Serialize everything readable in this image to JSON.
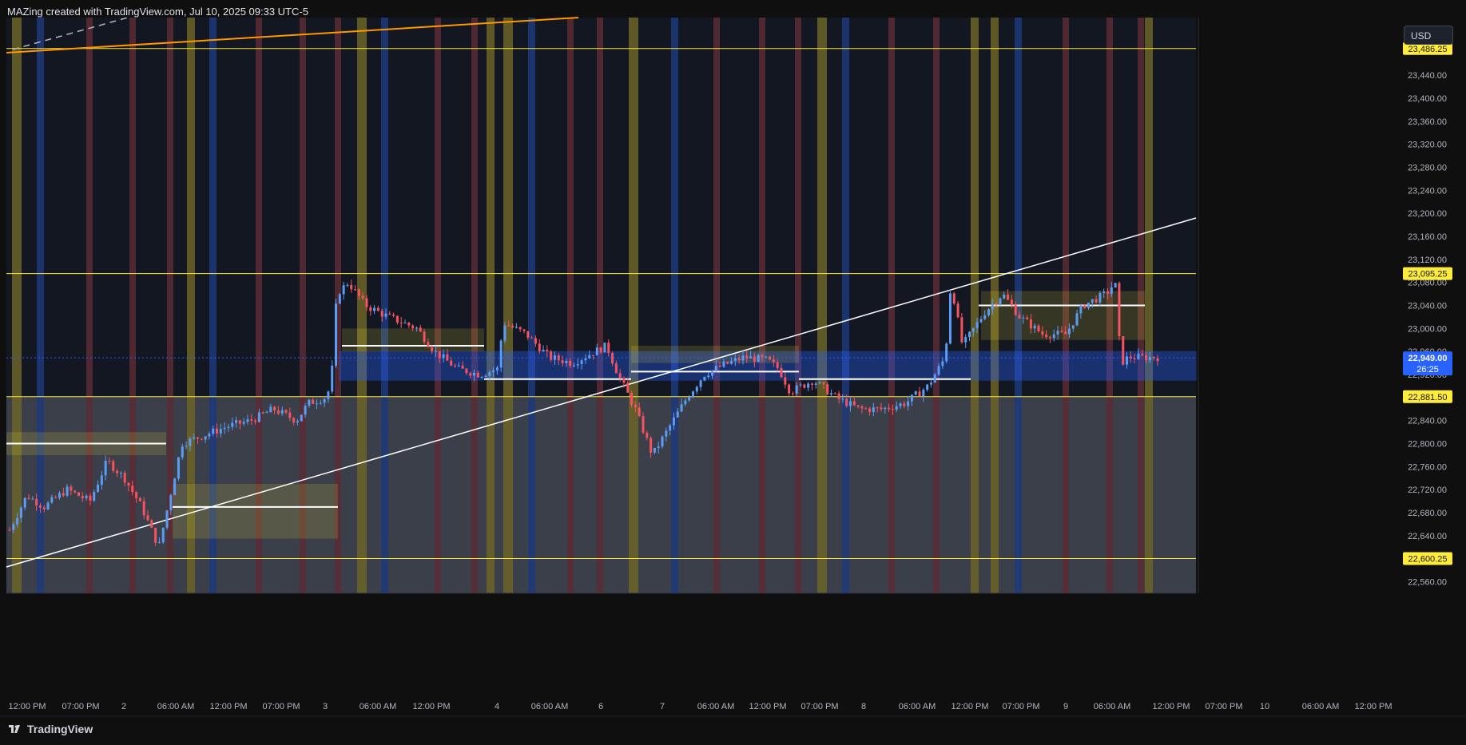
{
  "header": {
    "title": "MAZing created with TradingView.com, Jul 10, 2025 09:33 UTC-5"
  },
  "price_scale": {
    "currency": "USD",
    "ticks": [
      "23,440.00",
      "23,400.00",
      "23,360.00",
      "23,320.00",
      "23,280.00",
      "23,240.00",
      "23,200.00",
      "23,160.00",
      "23,120.00",
      "23,080.00",
      "23,040.00",
      "23,000.00",
      "22,960.00",
      "22,920.00",
      "22,840.00",
      "22,800.00",
      "22,760.00",
      "22,720.00",
      "22,680.00",
      "22,640.00",
      "22,560.00"
    ],
    "levels": [
      {
        "label": "23,486.25",
        "value": 23486.25,
        "color": "#ffeb3b"
      },
      {
        "label": "23,095.25",
        "value": 23095.25,
        "color": "#ffeb3b"
      },
      {
        "label": "22,881.50",
        "value": 22881.5,
        "color": "#ffeb3b"
      },
      {
        "label": "22,600.25",
        "value": 22600.25,
        "color": "#ffeb3b"
      }
    ],
    "current": {
      "price": "22,949.00",
      "countdown": "26:25",
      "value": 22949,
      "color": "#2962ff"
    }
  },
  "time_axis": {
    "labels": [
      "12:00 PM",
      "07:00 PM",
      "2",
      "06:00 AM",
      "12:00 PM",
      "07:00 PM",
      "3",
      "06:00 AM",
      "12:00 PM",
      "4",
      "06:00 AM",
      "6",
      "7",
      "06:00 AM",
      "12:00 PM",
      "07:00 PM",
      "8",
      "06:00 AM",
      "12:00 PM",
      "07:00 PM",
      "9",
      "06:00 AM",
      "12:00 PM",
      "07:00 PM",
      "10",
      "06:00 AM",
      "12:00 PM"
    ]
  },
  "footer": {
    "logo_text": "TradingView"
  },
  "colors": {
    "bull": "#5b9cf6",
    "bear": "#f7525f",
    "level": "#ffeb3b",
    "trendline": "#ffffff",
    "orange_line": "#ff9800",
    "session_yellow": "#6b6426",
    "session_red": "#5a2b34",
    "session_blue": "#1f3a7a",
    "zone_blue": "#2962ff"
  },
  "chart_data": {
    "type": "candlestick",
    "instrument_currency": "USD",
    "ylim": [
      22540,
      23540
    ],
    "price_path": [
      [
        0,
        22650
      ],
      [
        0.015,
        22710
      ],
      [
        0.03,
        22690
      ],
      [
        0.05,
        22720
      ],
      [
        0.07,
        22700
      ],
      [
        0.085,
        22770
      ],
      [
        0.1,
        22740
      ],
      [
        0.115,
        22690
      ],
      [
        0.13,
        22620
      ],
      [
        0.14,
        22710
      ],
      [
        0.15,
        22800
      ],
      [
        0.17,
        22815
      ],
      [
        0.19,
        22830
      ],
      [
        0.21,
        22840
      ],
      [
        0.23,
        22860
      ],
      [
        0.25,
        22840
      ],
      [
        0.26,
        22870
      ],
      [
        0.275,
        22880
      ],
      [
        0.28,
        22900
      ],
      [
        0.285,
        23060
      ],
      [
        0.295,
        23080
      ],
      [
        0.31,
        23040
      ],
      [
        0.33,
        23020
      ],
      [
        0.355,
        23000
      ],
      [
        0.37,
        22960
      ],
      [
        0.39,
        22930
      ],
      [
        0.41,
        22920
      ],
      [
        0.425,
        22930
      ],
      [
        0.43,
        23010
      ],
      [
        0.45,
        22990
      ],
      [
        0.47,
        22950
      ],
      [
        0.49,
        22940
      ],
      [
        0.51,
        22960
      ],
      [
        0.52,
        22970
      ],
      [
        0.53,
        22920
      ],
      [
        0.545,
        22860
      ],
      [
        0.56,
        22780
      ],
      [
        0.575,
        22830
      ],
      [
        0.59,
        22880
      ],
      [
        0.605,
        22920
      ],
      [
        0.62,
        22935
      ],
      [
        0.64,
        22950
      ],
      [
        0.66,
        22945
      ],
      [
        0.67,
        22930
      ],
      [
        0.68,
        22890
      ],
      [
        0.7,
        22910
      ],
      [
        0.72,
        22880
      ],
      [
        0.74,
        22860
      ],
      [
        0.76,
        22860
      ],
      [
        0.78,
        22870
      ],
      [
        0.8,
        22900
      ],
      [
        0.815,
        22950
      ],
      [
        0.82,
        23080
      ],
      [
        0.83,
        22970
      ],
      [
        0.85,
        23030
      ],
      [
        0.865,
        23060
      ],
      [
        0.88,
        23020
      ],
      [
        0.9,
        22990
      ],
      [
        0.92,
        22990
      ],
      [
        0.935,
        23040
      ],
      [
        0.955,
        23060
      ],
      [
        0.963,
        23080
      ],
      [
        0.968,
        22940
      ],
      [
        0.975,
        22950
      ]
    ],
    "price_levels": [
      23486.25,
      23095.25,
      22881.5,
      22600.25
    ],
    "last_price": 22949,
    "countdown": "26:25"
  }
}
